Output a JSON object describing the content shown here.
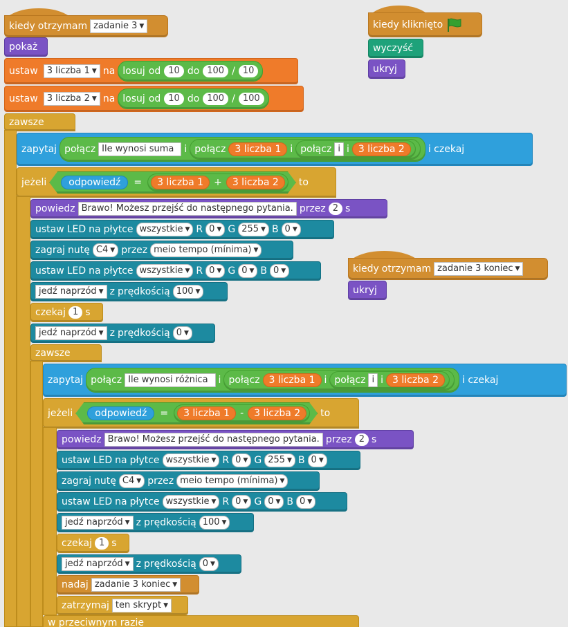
{
  "script1": {
    "hat": {
      "kiedy": "kiedy",
      "otrzymam": "otrzymam",
      "msg": "zadanie 3"
    },
    "show": "pokaż",
    "set1": {
      "ustaw": "ustaw",
      "var": "3 liczba 1",
      "na": "na",
      "losuj": "losuj",
      "od": "od",
      "a": "10",
      "do": "do",
      "b": "100",
      "div": "/",
      "c": "10"
    },
    "set2": {
      "ustaw": "ustaw",
      "var": "3 liczba 2",
      "na": "na",
      "losuj": "losuj",
      "od": "od",
      "a": "10",
      "do": "do",
      "b": "100",
      "div": "/",
      "c": "100"
    },
    "forever": "zawsze",
    "ask1": {
      "zapytaj": "zapytaj",
      "join": "połącz",
      "text": "Ile wynosi suma",
      "i": "i",
      "var1": "3 liczba 1",
      "text2": "i",
      "var2": "3 liczba 2",
      "wait": "i czekaj"
    },
    "if1": {
      "if": "jeżeli",
      "answer": "odpowiedź",
      "eq": "=",
      "v1": "3 liczba 1",
      "plus": "+",
      "v2": "3 liczba 2",
      "to": "to"
    },
    "say1": {
      "say": "powiedz",
      "text": "Brawo! Możesz przejść do następnego pytania.",
      "for": "przez",
      "secs": "2",
      "s": "s"
    },
    "led1": {
      "ustaw": "ustaw",
      "led": "LED",
      "na": "na",
      "plytce": "płytce",
      "which": "wszystkie",
      "r": "R",
      "rv": "0",
      "g": "G",
      "gv": "255",
      "b": "B",
      "bv": "0"
    },
    "note1": {
      "zagraj": "zagraj",
      "nute": "nutę",
      "note": "C4",
      "przez": "przez",
      "dur": "meio tempo (mínima)"
    },
    "led2": {
      "which": "wszystkie",
      "rv": "0",
      "gv": "0",
      "bv": "0"
    },
    "drive1": {
      "dir": "jedź naprzód",
      "z": "z",
      "speed_label": "prędkością",
      "speed": "100"
    },
    "wait1": {
      "czekaj": "czekaj",
      "secs": "1",
      "s": "s"
    },
    "drive2": {
      "dir": "jedź naprzód",
      "speed": "0"
    },
    "forever2": "zawsze",
    "ask2": {
      "text": "Ile wynosi różnica"
    },
    "if2": {
      "minus": "-"
    },
    "broadcast": {
      "nadaj": "nadaj",
      "msg": "zadanie 3 koniec"
    },
    "stop": {
      "zatrzymaj": "zatrzymaj",
      "what": "ten skrypt"
    },
    "else": "w przeciwnym razie"
  },
  "script2": {
    "kiedy": "kiedy",
    "kliknieto": "kliknięto",
    "clear": "wyczyść",
    "hide": "ukryj",
    "flag_color": "#36a02f"
  },
  "script3": {
    "kiedy": "kiedy",
    "otrzymam": "otrzymam",
    "msg": "zadanie 3 koniec",
    "hide": "ukryj"
  }
}
